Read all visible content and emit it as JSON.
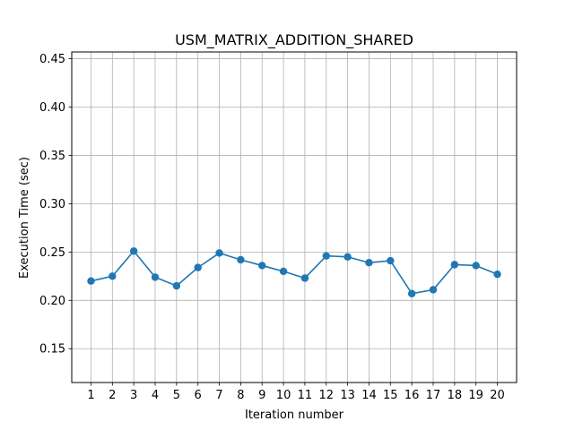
{
  "chart_data": {
    "type": "line",
    "title": "USM_MATRIX_ADDITION_SHARED",
    "xlabel": "Iteration number",
    "ylabel": "Execution Time (sec)",
    "x": [
      1,
      2,
      3,
      4,
      5,
      6,
      7,
      8,
      9,
      10,
      11,
      12,
      13,
      14,
      15,
      16,
      17,
      18,
      19,
      20
    ],
    "series": [
      {
        "values": [
          0.22,
          0.225,
          0.251,
          0.224,
          0.215,
          0.234,
          0.249,
          0.242,
          0.236,
          0.23,
          0.223,
          0.246,
          0.245,
          0.239,
          0.241,
          0.207,
          0.211,
          0.237,
          0.236,
          0.227
        ],
        "color": "#1f77b4",
        "marker": "circle"
      }
    ],
    "xlim": [
      0.1,
      20.9
    ],
    "ylim": [
      0.115,
      0.457
    ],
    "xticks": [
      1,
      2,
      3,
      4,
      5,
      6,
      7,
      8,
      9,
      10,
      11,
      12,
      13,
      14,
      15,
      16,
      17,
      18,
      19,
      20
    ],
    "yticks": [
      0.15,
      0.2,
      0.25,
      0.3,
      0.35,
      0.4,
      0.45
    ],
    "ytick_labels": [
      "0.15",
      "0.20",
      "0.25",
      "0.30",
      "0.35",
      "0.40",
      "0.45"
    ],
    "grid": true
  }
}
